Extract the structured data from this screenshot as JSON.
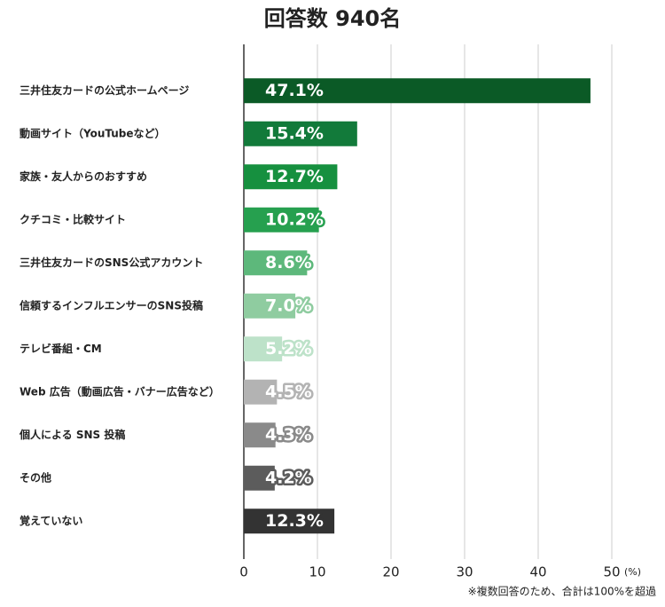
{
  "chart_data": {
    "type": "hbar",
    "title": "回答数 940名",
    "categories": [
      "三井住友カードの公式ホームページ",
      "動画サイト（YouTubeなど）",
      "家族・友人からのおすすめ",
      "クチコミ・比較サイト",
      "三井住友カードのSNS公式アカウント",
      "信頼するインフルエンサーのSNS投稿",
      "テレビ番組・CM",
      "Web 広告（動画広告・バナー広告など）",
      "個人による SNS 投稿",
      "その他",
      "覚えていない"
    ],
    "values": [
      47.1,
      15.4,
      12.7,
      10.2,
      8.6,
      7.0,
      5.2,
      4.5,
      4.3,
      4.2,
      12.3
    ],
    "value_labels": [
      "47.1%",
      "15.4%",
      "12.7%",
      "10.2%",
      "8.6%",
      "7.0%",
      "5.2%",
      "4.5%",
      "4.3%",
      "4.2%",
      "12.3%"
    ],
    "colors": [
      "#0b5a26",
      "#127a3a",
      "#16903f",
      "#26a04f",
      "#5db87b",
      "#8fcca0",
      "#bde2c9",
      "#b3b3b3",
      "#8a8a8a",
      "#5c5c5c",
      "#333333"
    ],
    "xlim": [
      0,
      50
    ],
    "xticks": [
      0,
      10,
      20,
      30,
      40,
      50
    ],
    "x_unit": "(%)",
    "grid": true,
    "note": "※複数回答のため、合計は100%を超過"
  }
}
